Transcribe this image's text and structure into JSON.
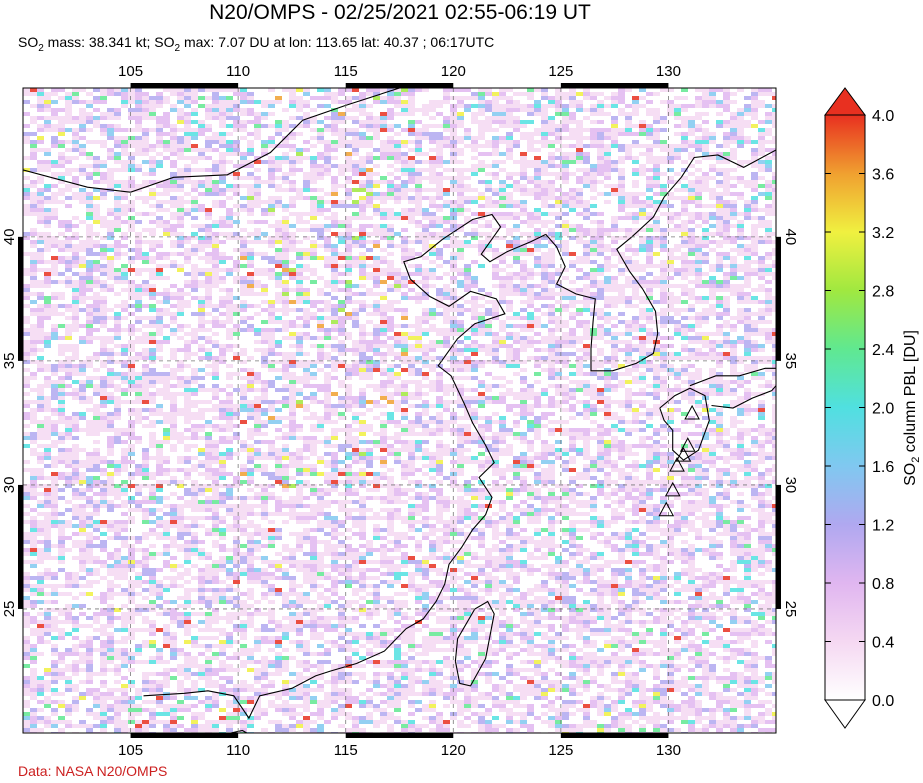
{
  "header": {
    "title": "N20/OMPS - 02/25/2021 02:55-06:19 UT",
    "subtitle_parts": [
      "SO",
      "2",
      " mass: 38.341 kt; SO",
      "2",
      " max: 7.07 DU at lon: 113.65 lat: 40.37 ; 06:17UTC"
    ]
  },
  "map": {
    "lon_range": [
      100,
      135
    ],
    "lat_range": [
      20,
      46
    ],
    "lon_ticks": [
      105,
      110,
      115,
      120,
      125,
      130
    ],
    "lat_ticks": [
      25,
      30,
      35,
      40
    ],
    "lon_tick_labels": [
      "105",
      "110",
      "115",
      "120",
      "125",
      "130"
    ],
    "lat_tick_labels": [
      "25",
      "30",
      "35",
      "40"
    ],
    "gridlines": "dashed",
    "volcano_markers": [
      {
        "lon": 131.1,
        "lat": 32.9
      },
      {
        "lon": 130.9,
        "lat": 31.6
      },
      {
        "lon": 130.7,
        "lat": 31.2
      },
      {
        "lon": 130.4,
        "lat": 30.8
      },
      {
        "lon": 130.2,
        "lat": 29.8
      },
      {
        "lon": 129.9,
        "lat": 29.0
      }
    ]
  },
  "colorbar": {
    "label_parts": [
      "SO",
      "2",
      " column PBL [DU]"
    ],
    "min": 0.0,
    "max": 4.0,
    "tick_labels": [
      "0.0",
      "0.4",
      "0.8",
      "1.2",
      "1.6",
      "2.0",
      "2.4",
      "2.8",
      "3.2",
      "3.6",
      "4.0"
    ],
    "colors": [
      "#ffffff",
      "#f5d8f2",
      "#e0b6f0",
      "#b0a8f0",
      "#80c8f0",
      "#50e0e0",
      "#60e890",
      "#a0e840",
      "#f0f040",
      "#f0a030",
      "#e83020"
    ]
  },
  "credit": "Data: NASA N20/OMPS"
}
